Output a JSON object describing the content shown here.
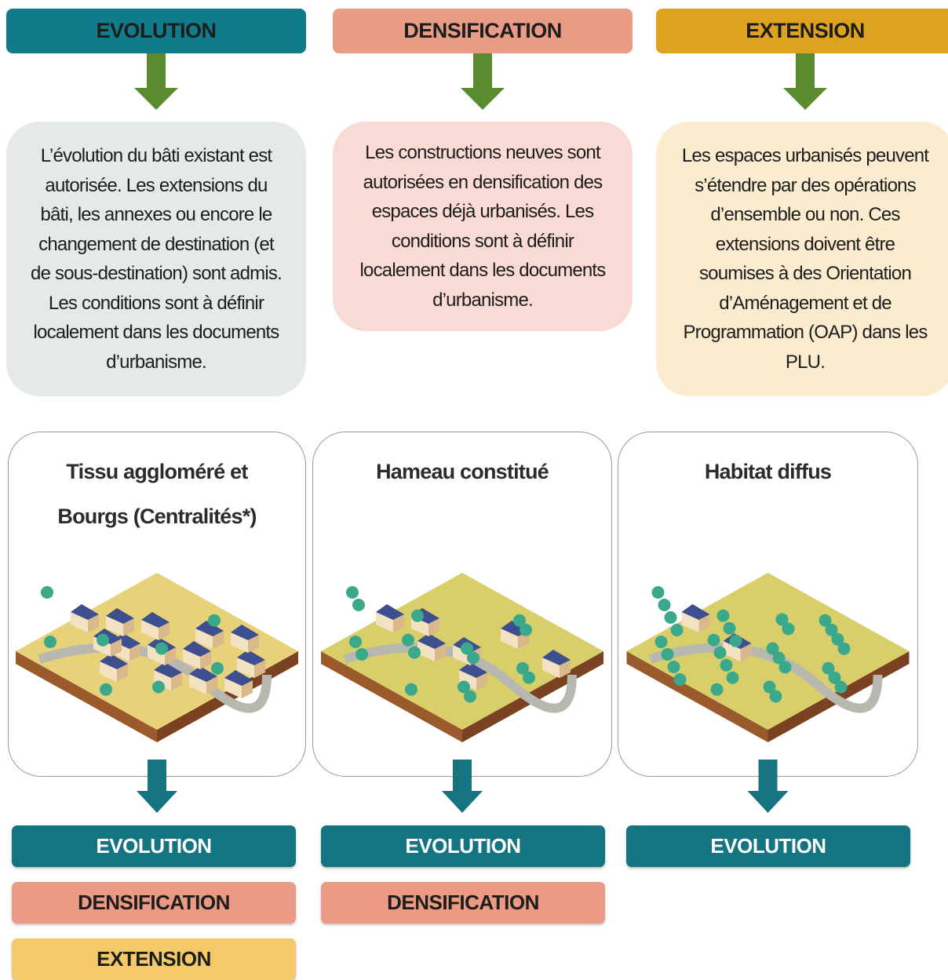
{
  "top_columns": [
    {
      "header": "EVOLUTION",
      "description": "L’évolution du bâti existant est autorisée. Les extensions du bâti, les annexes ou encore le changement de destination (et de sous-destination) sont admis. Les conditions sont à définir localement dans les documents d’urbanisme."
    },
    {
      "header": "DENSIFICATION",
      "description": "Les constructions neuves sont autorisées en densification des espaces déjà urbanisés. Les conditions sont à définir localement dans les documents d’urbanisme."
    },
    {
      "header": "EXTENSION",
      "description": "Les espaces urbanisés peuvent s’étendre par des opérations d’ensemble ou non. Ces extensions doivent être soumises à des Orientation d’Aménagement et de Programmation (OAP) dans les PLU."
    }
  ],
  "panels": [
    {
      "title": "Tissu aggloméré et Bourgs (Centralités*)",
      "tags": [
        "EVOLUTION",
        "DENSIFICATION",
        "EXTENSION"
      ]
    },
    {
      "title": "Hameau constitué",
      "tags": [
        "EVOLUTION",
        "DENSIFICATION"
      ]
    },
    {
      "title": "Habitat diffus",
      "tags": [
        "EVOLUTION"
      ]
    }
  ]
}
